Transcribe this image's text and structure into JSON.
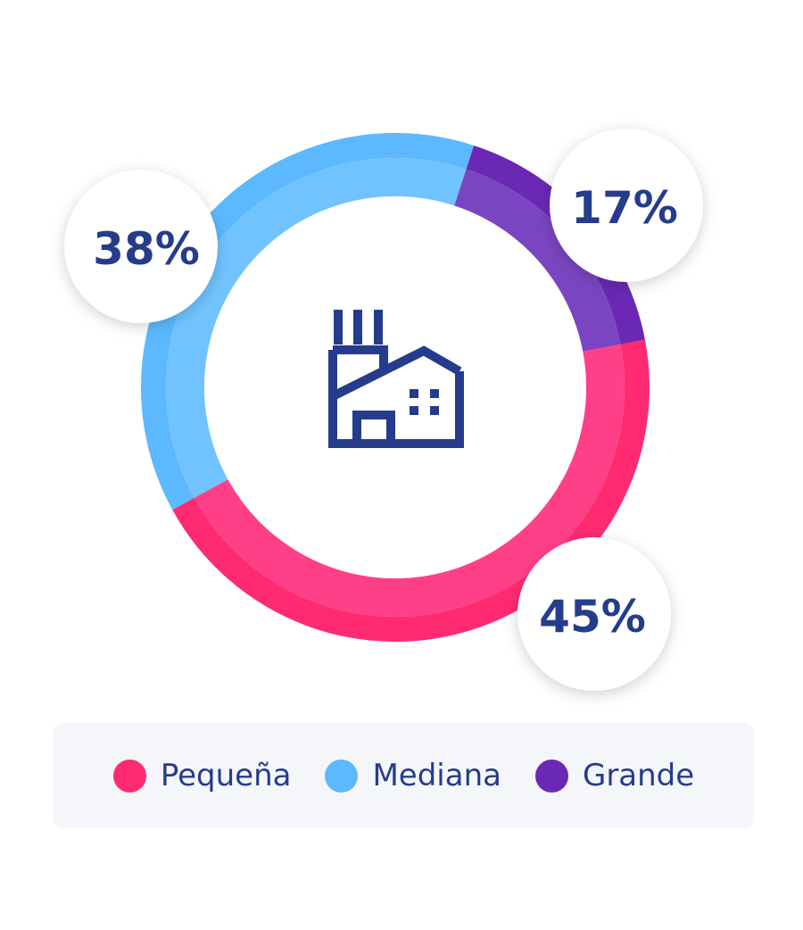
{
  "chart_data": {
    "type": "pie",
    "variant": "donut",
    "center_icon": "factory-icon",
    "slices": [
      {
        "name": "Grande",
        "value": 17,
        "label": "17%",
        "color": "#6a28b5",
        "inner_color": "#7a45c0"
      },
      {
        "name": "Pequeña",
        "value": 45,
        "label": "45%",
        "color": "#ff2a70",
        "inner_color": "#ff3f88"
      },
      {
        "name": "Mediana",
        "value": 38,
        "label": "38%",
        "color": "#5cb9ff",
        "inner_color": "#71c3ff"
      }
    ],
    "legend": [
      {
        "name": "Pequeña",
        "color": "#ff2a70"
      },
      {
        "name": "Mediana",
        "color": "#5cb9ff"
      },
      {
        "name": "Grande",
        "color": "#6a28b5"
      }
    ],
    "legend_position": "bottom",
    "text_color": "#253c8c"
  }
}
